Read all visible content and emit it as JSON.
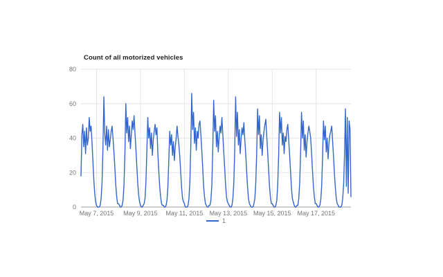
{
  "page": {
    "background": "#ffffff"
  },
  "colors": {
    "series": "#3366cc",
    "grid": "#e6e6e6",
    "baseline": "#9e9e9e",
    "tick_label": "#757575",
    "title": "#222222",
    "background": "#ffffff"
  },
  "legend": {
    "position": "bottom-center"
  },
  "chart_data": {
    "type": "line",
    "title": "Count of all motorized vehicles",
    "xlabel": "",
    "ylabel": "",
    "ylim": [
      0,
      80
    ],
    "y_ticks": [
      0,
      20,
      40,
      60,
      80
    ],
    "x_ticks": [
      {
        "label": "May 7, 2015",
        "hour": 17
      },
      {
        "label": "May 9, 2015",
        "hour": 65
      },
      {
        "label": "May 11, 2015",
        "hour": 113
      },
      {
        "label": "May 13, 2015",
        "hour": 161
      },
      {
        "label": "May 15, 2015",
        "hour": 209
      },
      {
        "label": "May 17, 2015",
        "hour": 257
      }
    ],
    "x_unit": "hourly samples from May 6 2015 07:00 to May 18 2015 14:00",
    "grid": true,
    "legend_position": "bottom-center",
    "series": [
      {
        "name": "1",
        "color": "#3366cc",
        "values": [
          18,
          42,
          48,
          35,
          44,
          31,
          46,
          36,
          40,
          52,
          44,
          47,
          38,
          27,
          16,
          8,
          3,
          1,
          0,
          0,
          0,
          1,
          5,
          14,
          34,
          64,
          42,
          36,
          47,
          33,
          45,
          35,
          39,
          44,
          47,
          40,
          32,
          23,
          13,
          6,
          2,
          2,
          1,
          0,
          0,
          1,
          4,
          13,
          31,
          60,
          43,
          52,
          38,
          47,
          34,
          42,
          50,
          45,
          53,
          43,
          34,
          24,
          14,
          7,
          3,
          1,
          0,
          0,
          1,
          2,
          5,
          15,
          33,
          52,
          40,
          46,
          34,
          43,
          30,
          39,
          44,
          48,
          42,
          46,
          31,
          21,
          12,
          6,
          2,
          1,
          1,
          0,
          0,
          1,
          4,
          12,
          28,
          44,
          36,
          42,
          30,
          38,
          27,
          35,
          40,
          47,
          41,
          36,
          29,
          20,
          11,
          5,
          3,
          2,
          0,
          0,
          0,
          1,
          5,
          15,
          35,
          66,
          45,
          55,
          37,
          46,
          33,
          44,
          40,
          48,
          50,
          42,
          33,
          23,
          12,
          6,
          2,
          1,
          0,
          0,
          1,
          1,
          4,
          13,
          33,
          62,
          44,
          53,
          35,
          44,
          32,
          41,
          47,
          43,
          52,
          42,
          32,
          23,
          13,
          6,
          3,
          2,
          1,
          0,
          0,
          1,
          5,
          14,
          33,
          64,
          41,
          55,
          36,
          45,
          31,
          40,
          46,
          42,
          49,
          39,
          31,
          21,
          12,
          5,
          2,
          1,
          0,
          0,
          0,
          2,
          5,
          14,
          31,
          57,
          42,
          53,
          34,
          42,
          30,
          39,
          44,
          48,
          51,
          41,
          32,
          22,
          12,
          6,
          2,
          2,
          1,
          0,
          0,
          1,
          4,
          13,
          30,
          55,
          43,
          52,
          36,
          43,
          31,
          41,
          38,
          45,
          48,
          39,
          30,
          21,
          11,
          5,
          3,
          1,
          0,
          0,
          1,
          1,
          5,
          14,
          32,
          55,
          40,
          50,
          33,
          42,
          29,
          38,
          43,
          47,
          44,
          40,
          31,
          21,
          12,
          6,
          2,
          2,
          1,
          0,
          0,
          1,
          4,
          12,
          29,
          50,
          39,
          47,
          32,
          40,
          28,
          37,
          42,
          44,
          47,
          38,
          29,
          19,
          11,
          5,
          2,
          1,
          0,
          0,
          0,
          1,
          5,
          13,
          31,
          57,
          12,
          52,
          8,
          50,
          45,
          6
        ]
      }
    ]
  }
}
